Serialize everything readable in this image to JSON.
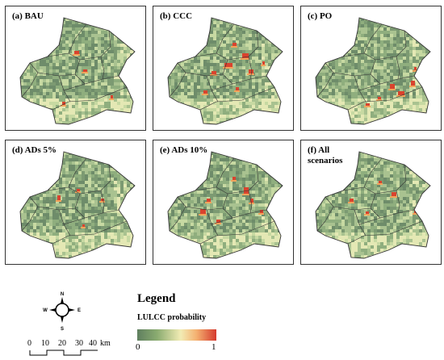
{
  "panels": [
    {
      "id": "p1",
      "label": "(a) BAU",
      "hotspots": [
        [
          85,
          55,
          6,
          4
        ],
        [
          96,
          78,
          5,
          3
        ],
        [
          70,
          118,
          4,
          4
        ],
        [
          130,
          110,
          3,
          4
        ]
      ]
    },
    {
      "id": "p2",
      "label": "(b) CCC",
      "hotspots": [
        [
          98,
          45,
          5,
          4
        ],
        [
          110,
          58,
          8,
          6
        ],
        [
          88,
          70,
          10,
          5
        ],
        [
          72,
          80,
          6,
          4
        ],
        [
          118,
          78,
          6,
          5
        ],
        [
          62,
          104,
          5,
          4
        ],
        [
          102,
          100,
          4,
          4
        ],
        [
          135,
          68,
          3,
          4
        ]
      ]
    },
    {
      "id": "p3",
      "label": "(c) PO",
      "hotspots": [
        [
          110,
          96,
          6,
          6
        ],
        [
          120,
          105,
          8,
          5
        ],
        [
          136,
          92,
          5,
          6
        ],
        [
          95,
          112,
          4,
          3
        ],
        [
          80,
          120,
          5,
          3
        ],
        [
          140,
          75,
          3,
          4
        ]
      ]
    },
    {
      "id": "p4",
      "label": "(d) ADs 5%",
      "hotspots": [
        [
          64,
          68,
          4,
          6
        ],
        [
          88,
          60,
          4,
          3
        ],
        [
          118,
          72,
          4,
          3
        ],
        [
          95,
          104,
          3,
          3
        ]
      ]
    },
    {
      "id": "p5",
      "label": "(e) ADs 10%",
      "hotspots": [
        [
          58,
          85,
          7,
          6
        ],
        [
          66,
          72,
          5,
          4
        ],
        [
          112,
          58,
          6,
          8
        ],
        [
          120,
          72,
          4,
          5
        ],
        [
          78,
          98,
          5,
          4
        ],
        [
          98,
          45,
          4,
          4
        ],
        [
          132,
          86,
          4,
          4
        ]
      ]
    },
    {
      "id": "p6",
      "label": "(f) All scenarios",
      "hotspots": [
        [
          60,
          72,
          5,
          4
        ],
        [
          112,
          64,
          6,
          5
        ],
        [
          80,
          88,
          4,
          3
        ],
        [
          140,
          84,
          5,
          6
        ],
        [
          96,
          50,
          4,
          3
        ]
      ]
    }
  ],
  "legend": {
    "title": "Legend",
    "subtitle": "LULCC probability",
    "min": "0",
    "max": "1",
    "colors": [
      "#5f7f5f",
      "#8aab70",
      "#f2ecb4",
      "#f4b070",
      "#d53a2e"
    ]
  },
  "compass": {
    "n": "N",
    "s": "S",
    "e": "E",
    "w": "W"
  },
  "scale": {
    "ticks": [
      "0",
      "10",
      "20",
      "30",
      "40"
    ],
    "unit": "km"
  }
}
